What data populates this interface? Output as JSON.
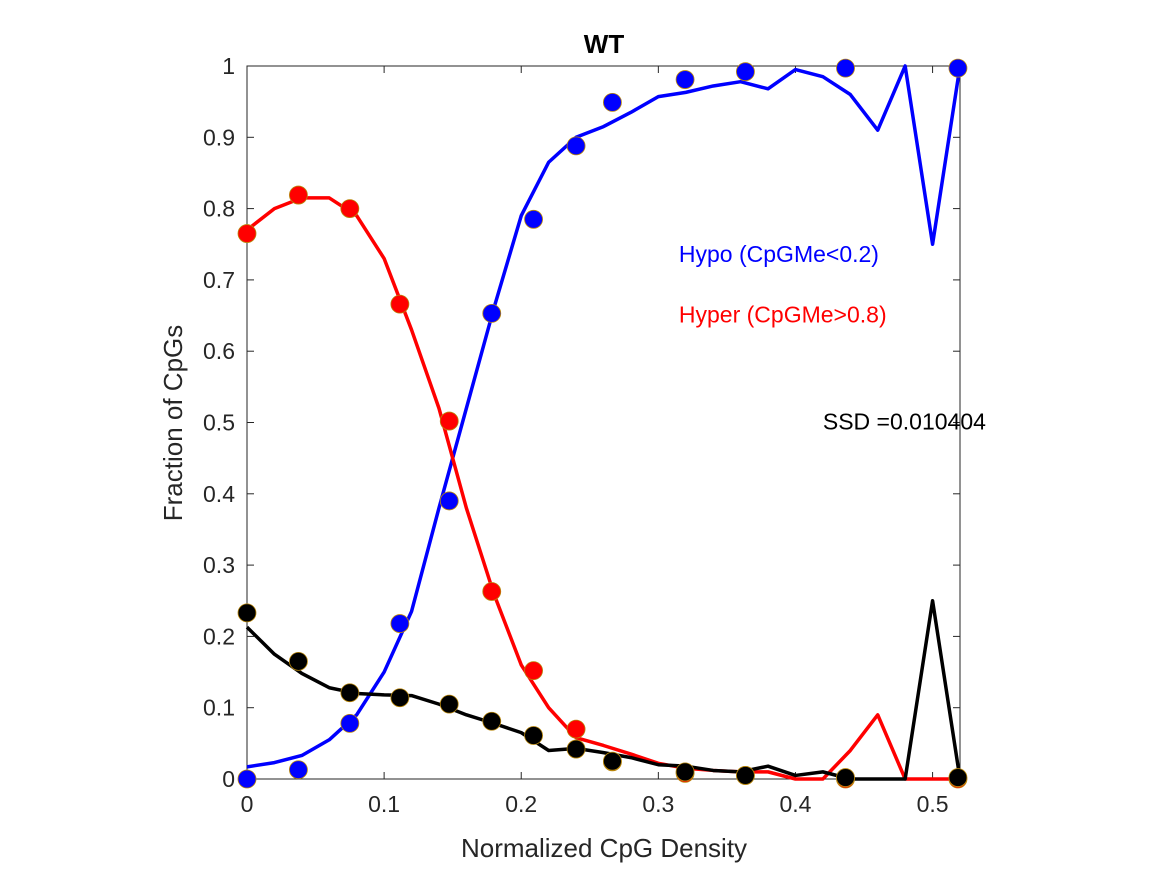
{
  "chart_data": {
    "type": "line",
    "title": "WT",
    "xlabel": "Normalized CpG Density",
    "ylabel": "Fraction of CpGs",
    "xlim": [
      0,
      0.52
    ],
    "ylim": [
      0,
      1
    ],
    "xticks": [
      0,
      0.1,
      0.2,
      0.3,
      0.4,
      0.5
    ],
    "xtick_labels": [
      "0",
      "0.1",
      "0.2",
      "0.3",
      "0.4",
      "0.5"
    ],
    "yticks": [
      0,
      0.1,
      0.2,
      0.3,
      0.4,
      0.5,
      0.6,
      0.7,
      0.8,
      0.9,
      1
    ],
    "ytick_labels": [
      "0",
      "0.1",
      "0.2",
      "0.3",
      "0.4",
      "0.5",
      "0.6",
      "0.7",
      "0.8",
      "0.9",
      "1"
    ],
    "grid": false,
    "box": true,
    "annotations": [
      {
        "text": "Hypo (CpGMe<0.2)",
        "color": "#0000ff",
        "x": 0.315,
        "y": 0.725
      },
      {
        "text": "Hyper (CpGMe>0.8)",
        "color": "#ff0000",
        "x": 0.315,
        "y": 0.64
      },
      {
        "text": "SSD =0.010404",
        "color": "#000000",
        "x": 0.42,
        "y": 0.49
      }
    ],
    "series": [
      {
        "kind": "line",
        "color": "#0000ff",
        "x": [
          0,
          0.02,
          0.04,
          0.06,
          0.08,
          0.1,
          0.12,
          0.14,
          0.16,
          0.18,
          0.2,
          0.22,
          0.24,
          0.26,
          0.28,
          0.3,
          0.32,
          0.34,
          0.36,
          0.38,
          0.4,
          0.42,
          0.44,
          0.46,
          0.48,
          0.5,
          0.52
        ],
        "y": [
          0.017,
          0.023,
          0.033,
          0.055,
          0.09,
          0.15,
          0.235,
          0.38,
          0.52,
          0.66,
          0.79,
          0.865,
          0.9,
          0.915,
          0.935,
          0.957,
          0.963,
          0.972,
          0.978,
          0.968,
          0.995,
          0.985,
          0.96,
          0.91,
          1.0,
          0.75,
          1.0
        ]
      },
      {
        "kind": "line",
        "color": "#ff0000",
        "x": [
          0,
          0.02,
          0.04,
          0.06,
          0.08,
          0.1,
          0.12,
          0.14,
          0.16,
          0.18,
          0.2,
          0.22,
          0.24,
          0.26,
          0.28,
          0.3,
          0.32,
          0.34,
          0.36,
          0.38,
          0.4,
          0.42,
          0.44,
          0.46,
          0.48,
          0.5,
          0.52
        ],
        "y": [
          0.77,
          0.8,
          0.815,
          0.815,
          0.79,
          0.73,
          0.63,
          0.52,
          0.38,
          0.26,
          0.16,
          0.1,
          0.058,
          0.047,
          0.035,
          0.022,
          0.015,
          0.012,
          0.01,
          0.01,
          0.0,
          0.0,
          0.04,
          0.09,
          0.0,
          0.0,
          0.0
        ]
      },
      {
        "kind": "line",
        "color": "#000000",
        "x": [
          0,
          0.02,
          0.04,
          0.06,
          0.08,
          0.1,
          0.12,
          0.14,
          0.16,
          0.18,
          0.2,
          0.22,
          0.24,
          0.26,
          0.28,
          0.3,
          0.32,
          0.34,
          0.36,
          0.38,
          0.4,
          0.42,
          0.44,
          0.46,
          0.48,
          0.5,
          0.52
        ],
        "y": [
          0.213,
          0.175,
          0.148,
          0.128,
          0.12,
          0.118,
          0.117,
          0.105,
          0.09,
          0.078,
          0.065,
          0.04,
          0.043,
          0.037,
          0.03,
          0.02,
          0.018,
          0.012,
          0.01,
          0.018,
          0.005,
          0.01,
          0.0,
          0.0,
          0.0,
          0.25,
          0.0
        ]
      },
      {
        "kind": "scatter",
        "color": "#0000ff",
        "x": [
          0,
          0.0375,
          0.075,
          0.1115,
          0.1475,
          0.1785,
          0.209,
          0.24,
          0.2665,
          0.3195,
          0.3635,
          0.4365,
          0.5185
        ],
        "y": [
          0.0,
          0.013,
          0.078,
          0.218,
          0.39,
          0.653,
          0.785,
          0.888,
          0.949,
          0.981,
          0.992,
          0.997,
          0.997
        ]
      },
      {
        "kind": "scatter",
        "color": "#ff0000",
        "x": [
          0,
          0.0375,
          0.075,
          0.1115,
          0.1475,
          0.1785,
          0.209,
          0.24,
          0.2665,
          0.3195,
          0.3635,
          0.4365,
          0.5185
        ],
        "y": [
          0.765,
          0.819,
          0.8,
          0.666,
          0.502,
          0.263,
          0.152,
          0.07,
          0.024,
          0.008,
          0.005,
          0.0,
          0.0
        ]
      },
      {
        "kind": "scatter",
        "color": "#000000",
        "x": [
          0,
          0.0375,
          0.075,
          0.1115,
          0.1475,
          0.1785,
          0.209,
          0.24,
          0.2665,
          0.3195,
          0.3635,
          0.4365,
          0.5185
        ],
        "y": [
          0.233,
          0.165,
          0.121,
          0.114,
          0.105,
          0.081,
          0.061,
          0.042,
          0.025,
          0.01,
          0.005,
          0.002,
          0.002
        ]
      }
    ]
  }
}
